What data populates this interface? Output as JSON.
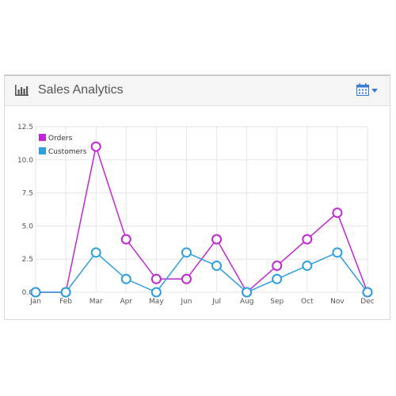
{
  "widget": {
    "title": "Sales Analytics",
    "header_icon": "bar-chart-icon",
    "toolbar_icon": "calendar-icon",
    "toolbar_caret_icon": "caret-down-icon",
    "accent_color": "#3a7bd5"
  },
  "chart_data": {
    "type": "line",
    "categories": [
      "Jan",
      "Feb",
      "Mar",
      "Apr",
      "May",
      "Jun",
      "Jul",
      "Aug",
      "Sep",
      "Oct",
      "Nov",
      "Dec"
    ],
    "yticks": [
      "0.0",
      "2.5",
      "5.0",
      "7.5",
      "10.0",
      "12.5"
    ],
    "ylim": [
      0,
      12.5
    ],
    "grid": true,
    "legend_position": "top-left",
    "series": [
      {
        "name": "Orders",
        "color": "#c026d3",
        "values": [
          0,
          0,
          11,
          4,
          1,
          1,
          4,
          0,
          2,
          4,
          6,
          0
        ]
      },
      {
        "name": "Customers",
        "color": "#2d9ee0",
        "values": [
          0,
          0,
          3,
          1,
          0,
          3,
          2,
          0,
          1,
          2,
          3,
          0
        ]
      }
    ]
  }
}
